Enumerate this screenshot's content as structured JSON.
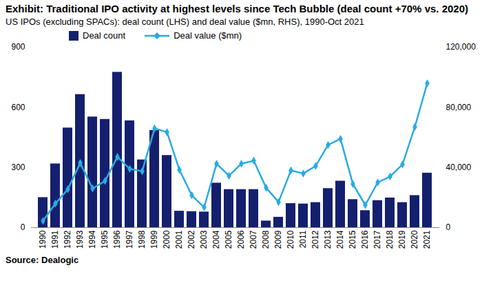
{
  "chart_data": {
    "type": "bar",
    "title": "Exhibit: Traditional IPO activity at highest levels since Tech Bubble (deal count +70% vs. 2020)",
    "subtitle": "US IPOs (excluding SPACs): deal count (LHS) and deal value ($mn, RHS), 1990-Oct 2021",
    "source": "Source: Dealogic",
    "categories": [
      "1990",
      "1991",
      "1992",
      "1993",
      "1994",
      "1995",
      "1996",
      "1997",
      "1998",
      "1999",
      "2000",
      "2001",
      "2002",
      "2003",
      "2004",
      "2005",
      "2006",
      "2007",
      "2008",
      "2009",
      "2010",
      "2011",
      "2012",
      "2013",
      "2014",
      "2015",
      "2016",
      "2017",
      "2018",
      "2019",
      "2020",
      "2021"
    ],
    "series": [
      {
        "name": "Deal count",
        "type": "bar",
        "color": "#14206e",
        "values": [
          150,
          318,
          497,
          664,
          552,
          540,
          775,
          533,
          338,
          485,
          360,
          82,
          80,
          78,
          222,
          190,
          190,
          190,
          33,
          52,
          120,
          118,
          125,
          195,
          232,
          140,
          85,
          135,
          148,
          125,
          160,
          272
        ]
      },
      {
        "name": "Deal value ($mn)",
        "type": "line",
        "axis": "y2",
        "color": "#29abe2",
        "marker": "diamond",
        "values": [
          4500,
          16000,
          25500,
          43000,
          26000,
          31000,
          47000,
          39000,
          37500,
          66000,
          63500,
          38500,
          21500,
          13500,
          42500,
          34500,
          42500,
          44500,
          26500,
          17000,
          38000,
          36000,
          41000,
          55000,
          59000,
          29000,
          15000,
          30000,
          34000,
          42000,
          67000,
          96000
        ]
      }
    ],
    "ylim": [
      0,
      900
    ],
    "yticks": [
      0,
      300,
      600,
      900
    ],
    "y2lim": [
      0,
      120000
    ],
    "y2ticks": [
      0,
      {
        "value": 40000,
        "label": "40,000"
      },
      {
        "value": 80000,
        "label": "80,000"
      },
      {
        "value": 120000,
        "label": "120,000"
      }
    ],
    "legend": "top",
    "grid": false
  }
}
